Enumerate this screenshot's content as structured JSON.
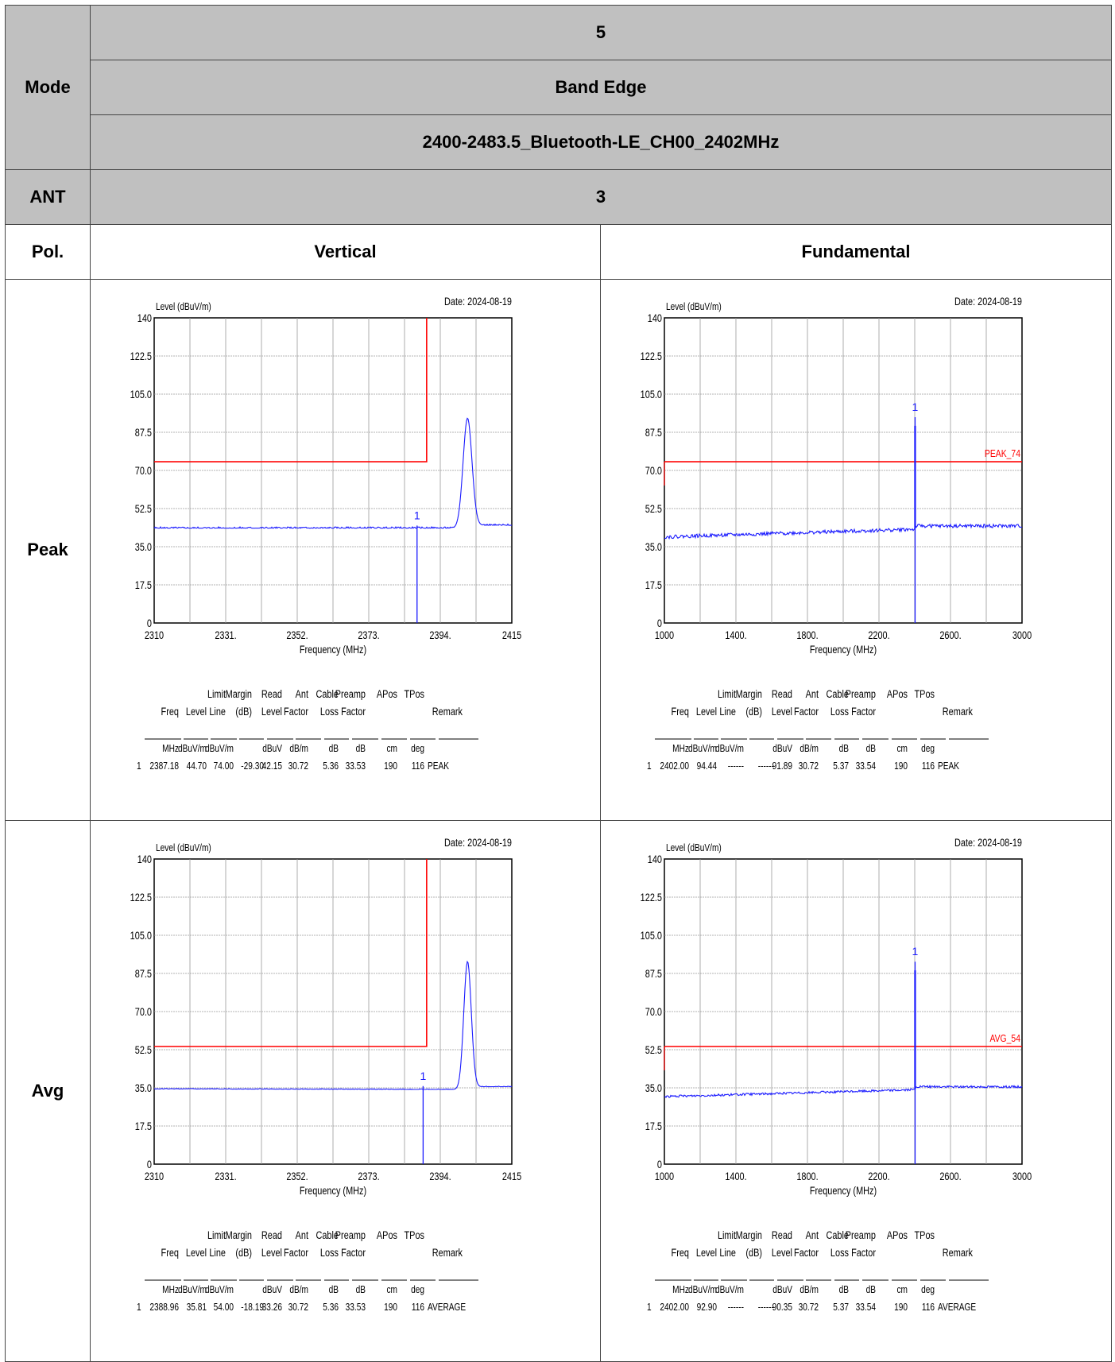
{
  "header": {
    "mode_label": "Mode",
    "mode_values": [
      "5",
      "Band Edge",
      "2400-2483.5_Bluetooth-LE_CH00_2402MHz"
    ],
    "ant_label": "ANT",
    "ant_value": "3",
    "pol_label": "Pol.",
    "col_left": "Vertical",
    "col_right": "Fundamental",
    "row_peak": "Peak",
    "row_avg": "Avg"
  },
  "table_headers": {
    "line1": [
      "Limit",
      "Margin",
      "Read",
      "Ant",
      "Cable",
      "Preamp",
      "APos",
      "TPos"
    ],
    "line2": [
      "Freq",
      "Level",
      "Line",
      "(dB)",
      "Level",
      "Factor",
      "Loss",
      "Factor",
      "Remark"
    ],
    "units": [
      "MHz",
      "dBuV/m",
      "dBuV/m",
      "",
      "dBuV",
      "dB/m",
      "dB",
      "dB",
      "cm",
      "deg"
    ]
  },
  "colors": {
    "trace": "#1a1aff",
    "limit": "#ff0000",
    "grid": "#9a9a9a",
    "cell_bg": "#c0c0c0"
  },
  "chart_data": [
    {
      "type": "line",
      "title": "",
      "date": "Date: 2024-08-19",
      "ylabel": "Level (dBuV/m)",
      "xlabel": "Frequency (MHz)",
      "xlim": [
        2310,
        2415
      ],
      "ylim": [
        0,
        140
      ],
      "xticks": [
        "2310",
        "2331.",
        "2352.",
        "2373.",
        "2394.",
        "2415"
      ],
      "yticks": [
        "0",
        "17.5",
        "35.0",
        "52.5",
        "70.0",
        "87.5",
        "105.0",
        "122.5",
        "140"
      ],
      "grid": true,
      "limit": {
        "kind": "step",
        "level": 74,
        "edge": 2390,
        "label": ""
      },
      "trace": {
        "base_start": 43.5,
        "base_end": 43.5,
        "peak_x": 2402,
        "peak_y": 94,
        "width": 1.3,
        "noise": 0.6,
        "tail": 44.8
      },
      "marker": {
        "label": "1",
        "x": 2387.18,
        "y": 44.7
      },
      "table_row": [
        "1",
        "2387.18",
        "44.70",
        "74.00",
        "-29.30",
        "42.15",
        "30.72",
        "5.36",
        "33.53",
        "190",
        "116",
        "PEAK"
      ]
    },
    {
      "type": "line",
      "title": "",
      "date": "Date: 2024-08-19",
      "ylabel": "Level (dBuV/m)",
      "xlabel": "Frequency (MHz)",
      "xlim": [
        1000,
        3000
      ],
      "ylim": [
        0,
        140
      ],
      "xticks": [
        "1000",
        "1400.",
        "1800.",
        "2200.",
        "2600.",
        "3000"
      ],
      "yticks": [
        "0",
        "17.5",
        "35.0",
        "52.5",
        "70.0",
        "87.5",
        "105.0",
        "122.5",
        "140"
      ],
      "grid": true,
      "limit": {
        "kind": "flat",
        "level": 74,
        "label": "PEAK_74"
      },
      "trace": {
        "base_start": 39.5,
        "base_end": 44.5,
        "peak_x": 2402,
        "peak_y": 94.44,
        "width": 0,
        "noise": 0.8,
        "tail": 44.5
      },
      "marker": {
        "label": "1",
        "x": 2402.0,
        "y": 94.44
      },
      "table_row": [
        "1",
        "2402.00",
        "94.44",
        "------",
        "------",
        "91.89",
        "30.72",
        "5.37",
        "33.54",
        "190",
        "116",
        "PEAK"
      ]
    },
    {
      "type": "line",
      "title": "",
      "date": "Date: 2024-08-19",
      "ylabel": "Level (dBuV/m)",
      "xlabel": "Frequency (MHz)",
      "xlim": [
        2310,
        2415
      ],
      "ylim": [
        0,
        140
      ],
      "xticks": [
        "2310",
        "2331.",
        "2352.",
        "2373.",
        "2394.",
        "2415"
      ],
      "yticks": [
        "0",
        "17.5",
        "35.0",
        "52.5",
        "70.0",
        "87.5",
        "105.0",
        "122.5",
        "140"
      ],
      "grid": true,
      "limit": {
        "kind": "step",
        "level": 54,
        "edge": 2390,
        "label": ""
      },
      "trace": {
        "base_start": 34.5,
        "base_end": 34.2,
        "peak_x": 2402,
        "peak_y": 93,
        "width": 1.1,
        "noise": 0.25,
        "tail": 35.5
      },
      "marker": {
        "label": "1",
        "x": 2388.96,
        "y": 35.81
      },
      "table_row": [
        "1",
        "2388.96",
        "35.81",
        "54.00",
        "-18.19",
        "33.26",
        "30.72",
        "5.36",
        "33.53",
        "190",
        "116",
        "AVERAGE"
      ]
    },
    {
      "type": "line",
      "title": "",
      "date": "Date: 2024-08-19",
      "ylabel": "Level (dBuV/m)",
      "xlabel": "Frequency (MHz)",
      "xlim": [
        1000,
        3000
      ],
      "ylim": [
        0,
        140
      ],
      "xticks": [
        "1000",
        "1400.",
        "1800.",
        "2200.",
        "2600.",
        "3000"
      ],
      "yticks": [
        "0",
        "17.5",
        "35.0",
        "52.5",
        "70.0",
        "87.5",
        "105.0",
        "122.5",
        "140"
      ],
      "grid": true,
      "limit": {
        "kind": "flat",
        "level": 54,
        "label": "AVG_54"
      },
      "trace": {
        "base_start": 31,
        "base_end": 35.5,
        "peak_x": 2402,
        "peak_y": 92.9,
        "width": 0,
        "noise": 0.5,
        "tail": 35.5
      },
      "marker": {
        "label": "1",
        "x": 2402.0,
        "y": 92.9
      },
      "table_row": [
        "1",
        "2402.00",
        "92.90",
        "------",
        "------",
        "90.35",
        "30.72",
        "5.37",
        "33.54",
        "190",
        "116",
        "AVERAGE"
      ]
    }
  ]
}
